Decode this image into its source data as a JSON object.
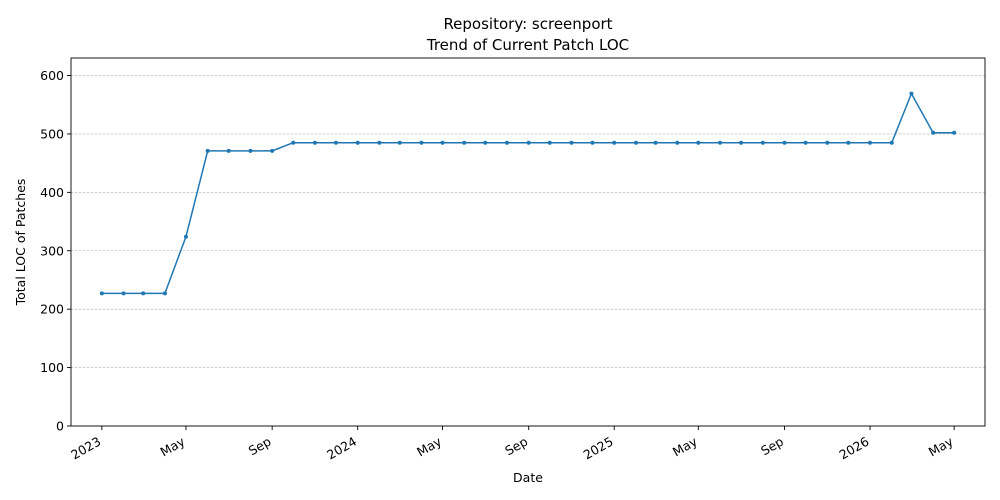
{
  "chart_data": {
    "type": "line",
    "title_line1": "Repository: screenport",
    "title_line2": "Trend of Current Patch LOC",
    "xlabel": "Date",
    "ylabel": "Total LOC of Patches",
    "ylim": [
      0,
      630
    ],
    "yticks": [
      0,
      100,
      200,
      300,
      400,
      500,
      600
    ],
    "xlim": [
      "2022-11-18",
      "2026-06-14"
    ],
    "xticks": [
      {
        "date": "2023-01-01",
        "label": "2023"
      },
      {
        "date": "2023-05-01",
        "label": "May"
      },
      {
        "date": "2023-09-01",
        "label": "Sep"
      },
      {
        "date": "2024-01-01",
        "label": "2024"
      },
      {
        "date": "2024-05-01",
        "label": "May"
      },
      {
        "date": "2024-09-01",
        "label": "Sep"
      },
      {
        "date": "2025-01-01",
        "label": "2025"
      },
      {
        "date": "2025-05-01",
        "label": "May"
      },
      {
        "date": "2025-09-01",
        "label": "Sep"
      },
      {
        "date": "2026-01-01",
        "label": "2026"
      },
      {
        "date": "2026-05-01",
        "label": "May"
      }
    ],
    "grid": "y-dashed",
    "color": "#1f77b4",
    "x": [
      "2023-01-01",
      "2023-02-01",
      "2023-03-01",
      "2023-04-01",
      "2023-05-01",
      "2023-06-01",
      "2023-07-01",
      "2023-08-01",
      "2023-09-01",
      "2023-10-01",
      "2023-11-01",
      "2023-12-01",
      "2024-01-01",
      "2024-02-01",
      "2024-03-01",
      "2024-04-01",
      "2024-05-01",
      "2024-06-01",
      "2024-07-01",
      "2024-08-01",
      "2024-09-01",
      "2024-10-01",
      "2024-11-01",
      "2024-12-01",
      "2025-01-01",
      "2025-02-01",
      "2025-03-01",
      "2025-04-01",
      "2025-05-01",
      "2025-06-01",
      "2025-07-01",
      "2025-08-01",
      "2025-09-01",
      "2025-10-01",
      "2025-11-01",
      "2025-12-01",
      "2026-01-01",
      "2026-02-01",
      "2026-03-01",
      "2026-04-01",
      "2026-05-01"
    ],
    "values": [
      227,
      227,
      227,
      227,
      324,
      471,
      471,
      471,
      471,
      485,
      485,
      485,
      485,
      485,
      485,
      485,
      485,
      485,
      485,
      485,
      485,
      485,
      485,
      485,
      485,
      485,
      485,
      485,
      485,
      485,
      485,
      485,
      485,
      485,
      485,
      485,
      485,
      485,
      569,
      502,
      502
    ]
  }
}
